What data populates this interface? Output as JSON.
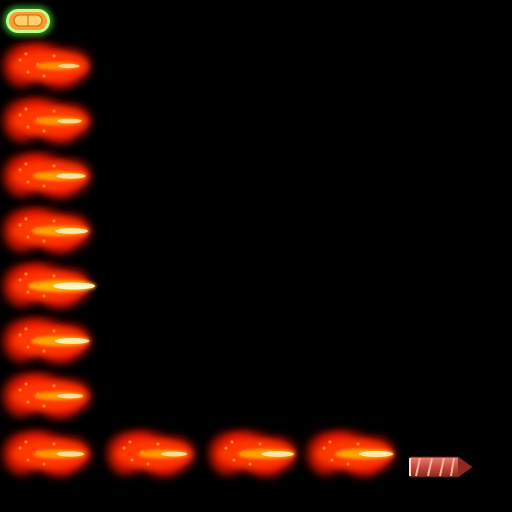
{
  "sprite_sheet": {
    "background": "#000000",
    "palette": {
      "glow_outer": "#ff1a00",
      "glow_mid": "#ff3b00",
      "flame_core": "#ffb000",
      "flame_hot": "#fff4c2",
      "ember": "#ff8a1e",
      "capsule_outline": "#7dff5a",
      "capsule_fill": "#ffc34d",
      "rocket_body": "#c9463a",
      "rocket_stripe": "#f4b39e",
      "rocket_tip": "#8c2a22"
    },
    "capsule_sprite": {
      "icon": "pill-capsule-icon"
    },
    "flame_frames": [
      {
        "icon": "rocket-exhaust-flame-icon",
        "core_intensity": 0.35
      },
      {
        "icon": "rocket-exhaust-flame-icon",
        "core_intensity": 0.45
      },
      {
        "icon": "rocket-exhaust-flame-icon",
        "core_intensity": 0.6
      },
      {
        "icon": "rocket-exhaust-flame-icon",
        "core_intensity": 0.7
      },
      {
        "icon": "rocket-exhaust-flame-icon",
        "core_intensity": 1.0
      },
      {
        "icon": "rocket-exhaust-flame-icon",
        "core_intensity": 0.75
      },
      {
        "icon": "rocket-exhaust-flame-icon",
        "core_intensity": 0.5
      },
      {
        "icon": "rocket-exhaust-flame-icon",
        "core_intensity": 0.55
      },
      {
        "icon": "rocket-exhaust-flame-icon",
        "core_intensity": 0.5
      },
      {
        "icon": "rocket-exhaust-flame-icon",
        "core_intensity": 0.7
      },
      {
        "icon": "rocket-exhaust-flame-icon",
        "core_intensity": 0.75
      }
    ],
    "rocket_sprite": {
      "icon": "rocket-missile-icon"
    }
  }
}
